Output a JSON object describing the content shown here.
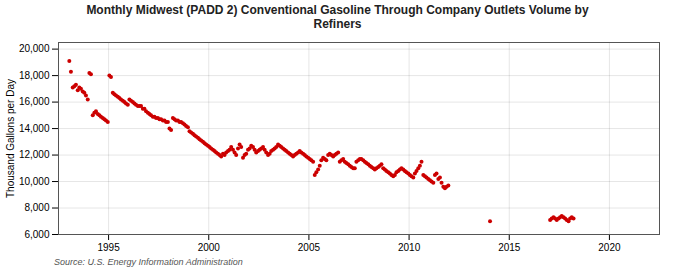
{
  "chart_data": {
    "type": "scatter",
    "title": "Monthly Midwest (PADD 2) Conventional Gasoline Through Company Outlets Volume by\nRefiners",
    "ylabel": "Thousand Gallons per Day",
    "source": "Source: U.S. Energy Information Administration",
    "color": "#cc0000",
    "grid": true,
    "xlim": [
      1992.5,
      2022.5
    ],
    "xticks": [
      1995,
      2000,
      2005,
      2010,
      2015,
      2020
    ],
    "ylim": [
      6000,
      20500
    ],
    "yticks": [
      {
        "value": 6000,
        "label": "6,000"
      },
      {
        "value": 8000,
        "label": "8,000"
      },
      {
        "value": 10000,
        "label": "10,000"
      },
      {
        "value": 12000,
        "label": "12,000"
      },
      {
        "value": 14000,
        "label": "14,000"
      },
      {
        "value": 16000,
        "label": "16,000"
      },
      {
        "value": 18000,
        "label": "18,000"
      },
      {
        "value": 20000,
        "label": "20,000"
      }
    ],
    "x": [
      1993.04,
      1993.12,
      1993.21,
      1993.29,
      1993.37,
      1993.46,
      1993.54,
      1993.62,
      1993.71,
      1993.79,
      1993.87,
      1993.96,
      1994.04,
      1994.12,
      1994.21,
      1994.29,
      1994.37,
      1994.46,
      1994.54,
      1994.62,
      1994.71,
      1994.79,
      1994.87,
      1994.96,
      1995.04,
      1995.12,
      1995.21,
      1995.29,
      1995.37,
      1995.46,
      1995.54,
      1995.62,
      1995.71,
      1995.79,
      1995.87,
      1995.96,
      1996.04,
      1996.12,
      1996.21,
      1996.29,
      1996.37,
      1996.46,
      1996.54,
      1996.62,
      1996.71,
      1996.79,
      1996.87,
      1996.96,
      1997.04,
      1997.12,
      1997.21,
      1997.29,
      1997.37,
      1997.46,
      1997.54,
      1997.62,
      1997.71,
      1997.79,
      1997.87,
      1997.96,
      1998.04,
      1998.12,
      1998.21,
      1998.29,
      1998.37,
      1998.46,
      1998.54,
      1998.62,
      1998.71,
      1998.79,
      1998.87,
      1998.96,
      1999.04,
      1999.12,
      1999.21,
      1999.29,
      1999.37,
      1999.46,
      1999.54,
      1999.62,
      1999.71,
      1999.79,
      1999.87,
      1999.96,
      2000.04,
      2000.12,
      2000.21,
      2000.29,
      2000.37,
      2000.46,
      2000.54,
      2000.62,
      2000.71,
      2000.79,
      2000.87,
      2000.96,
      2001.04,
      2001.12,
      2001.21,
      2001.29,
      2001.37,
      2001.46,
      2001.54,
      2001.62,
      2001.71,
      2001.79,
      2001.87,
      2001.96,
      2002.04,
      2002.12,
      2002.21,
      2002.29,
      2002.37,
      2002.46,
      2002.54,
      2002.62,
      2002.71,
      2002.79,
      2002.87,
      2002.96,
      2003.04,
      2003.12,
      2003.21,
      2003.29,
      2003.37,
      2003.46,
      2003.54,
      2003.62,
      2003.71,
      2003.79,
      2003.87,
      2003.96,
      2004.04,
      2004.12,
      2004.21,
      2004.29,
      2004.37,
      2004.46,
      2004.54,
      2004.62,
      2004.71,
      2004.79,
      2004.87,
      2004.96,
      2005.04,
      2005.12,
      2005.21,
      2005.29,
      2005.37,
      2005.46,
      2005.54,
      2005.62,
      2005.71,
      2005.79,
      2005.87,
      2005.96,
      2006.04,
      2006.12,
      2006.21,
      2006.29,
      2006.37,
      2006.46,
      2006.54,
      2006.62,
      2006.71,
      2006.79,
      2006.87,
      2006.96,
      2007.04,
      2007.12,
      2007.21,
      2007.29,
      2007.37,
      2007.46,
      2007.54,
      2007.62,
      2007.71,
      2007.79,
      2007.87,
      2007.96,
      2008.04,
      2008.12,
      2008.21,
      2008.29,
      2008.37,
      2008.46,
      2008.54,
      2008.62,
      2008.71,
      2008.79,
      2008.87,
      2008.96,
      2009.04,
      2009.12,
      2009.21,
      2009.29,
      2009.37,
      2009.46,
      2009.54,
      2009.62,
      2009.71,
      2009.79,
      2009.87,
      2009.96,
      2010.04,
      2010.12,
      2010.21,
      2010.29,
      2010.37,
      2010.46,
      2010.54,
      2010.62,
      2010.71,
      2010.79,
      2010.87,
      2010.96,
      2011.04,
      2011.12,
      2011.21,
      2011.29,
      2011.37,
      2011.46,
      2011.54,
      2011.62,
      2011.71,
      2011.79,
      2011.87,
      2011.96,
      2014.04,
      2017.04,
      2017.12,
      2017.21,
      2017.29,
      2017.37,
      2017.46,
      2017.54,
      2017.62,
      2017.71,
      2017.79,
      2017.87,
      2017.96,
      2018.04,
      2018.12,
      2018.21
    ],
    "values": [
      19100,
      18300,
      17100,
      17200,
      17300,
      16900,
      17100,
      17000,
      16800,
      16700,
      16500,
      16200,
      18200,
      18100,
      15000,
      15200,
      15300,
      15100,
      15000,
      14900,
      14800,
      14700,
      14600,
      14500,
      18000,
      17900,
      16700,
      16600,
      16500,
      16400,
      16300,
      16200,
      16100,
      16000,
      15900,
      15800,
      16200,
      16100,
      16000,
      15900,
      15800,
      15700,
      15700,
      15700,
      15500,
      15500,
      15300,
      15200,
      15100,
      15000,
      14900,
      14900,
      14800,
      14800,
      14700,
      14700,
      14600,
      14600,
      14500,
      14500,
      14000,
      13900,
      14800,
      14700,
      14600,
      14600,
      14500,
      14500,
      14400,
      14300,
      14200,
      14100,
      13800,
      13700,
      13600,
      13500,
      13400,
      13300,
      13200,
      13100,
      13000,
      12900,
      12800,
      12700,
      12600,
      12500,
      12400,
      12300,
      12200,
      12100,
      12000,
      11900,
      12100,
      12000,
      12200,
      12300,
      12400,
      12600,
      12400,
      12200,
      12000,
      12500,
      12800,
      12600,
      11800,
      12000,
      12100,
      12400,
      12500,
      12700,
      12600,
      12400,
      12200,
      12300,
      12400,
      12500,
      12600,
      12400,
      12200,
      12000,
      12100,
      12300,
      12400,
      12500,
      12600,
      12800,
      12700,
      12600,
      12500,
      12400,
      12300,
      12200,
      12100,
      12000,
      11900,
      12000,
      12100,
      12200,
      12300,
      12200,
      12100,
      12000,
      11900,
      11800,
      11700,
      11600,
      11500,
      10500,
      10700,
      10900,
      11200,
      11600,
      11800,
      11700,
      11600,
      12000,
      12100,
      12000,
      11900,
      12000,
      12100,
      12200,
      11500,
      11600,
      11700,
      11500,
      11400,
      11300,
      11200,
      11100,
      11000,
      11000,
      11500,
      11600,
      11700,
      11700,
      11600,
      11500,
      11400,
      11300,
      11200,
      11100,
      11000,
      10900,
      11000,
      11100,
      11200,
      11300,
      11000,
      10900,
      10800,
      10700,
      10600,
      10500,
      10400,
      10500,
      10700,
      10800,
      10900,
      11000,
      10900,
      10800,
      10700,
      10600,
      10500,
      10400,
      10300,
      10600,
      10800,
      11000,
      11200,
      11500,
      10500,
      10400,
      10300,
      10200,
      10100,
      10000,
      9900,
      10500,
      10600,
      10200,
      10300,
      9900,
      9600,
      9500,
      9600,
      9700,
      7000,
      7100,
      7200,
      7300,
      7200,
      7100,
      7200,
      7300,
      7400,
      7300,
      7200,
      7100,
      7000,
      7200,
      7300,
      7200
    ]
  }
}
